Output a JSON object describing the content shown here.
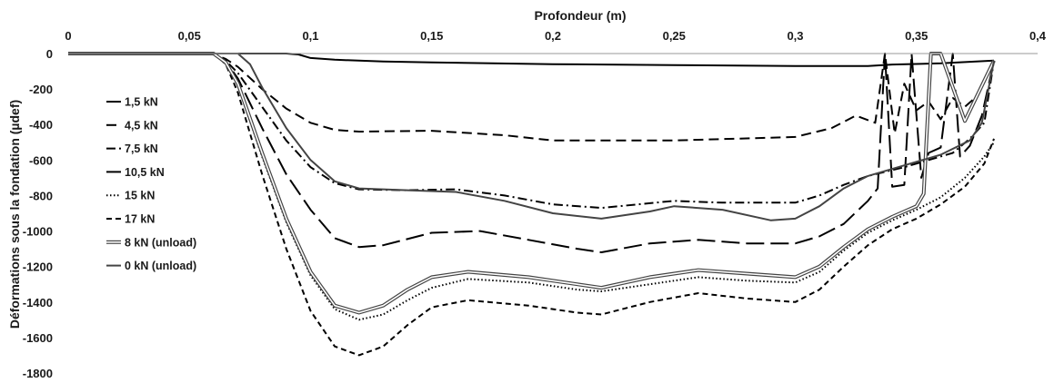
{
  "chart_data": {
    "type": "line",
    "xlabel": "Profondeur (m)",
    "ylabel": "Déformations sous la fondation (µdef)",
    "xlim": [
      0,
      0.4
    ],
    "ylim": [
      -1800,
      0
    ],
    "x_ticks": [
      "0",
      "0,05",
      "0,1",
      "0,15",
      "0,2",
      "0,25",
      "0,3",
      "0,35",
      "0,4"
    ],
    "y_ticks": [
      "0",
      "-200",
      "-400",
      "-600",
      "-800",
      "-1000",
      "-1200",
      "-1400",
      "-1600",
      "-1800"
    ],
    "grid": false,
    "legend_position": "left",
    "series": [
      {
        "name": "1,5 kN",
        "color": "#000000",
        "dash": "solid",
        "points": [
          [
            0.0,
            0
          ],
          [
            0.09,
            0
          ],
          [
            0.095,
            -5
          ],
          [
            0.1,
            -25
          ],
          [
            0.11,
            -35
          ],
          [
            0.13,
            -45
          ],
          [
            0.15,
            -50
          ],
          [
            0.2,
            -60
          ],
          [
            0.25,
            -65
          ],
          [
            0.3,
            -70
          ],
          [
            0.33,
            -70
          ],
          [
            0.34,
            -62
          ],
          [
            0.36,
            -55
          ],
          [
            0.382,
            -40
          ]
        ]
      },
      {
        "name": "4,5 kN",
        "color": "#000000",
        "dash": "medium-dash",
        "points": [
          [
            0.0,
            0
          ],
          [
            0.055,
            0
          ],
          [
            0.06,
            -5
          ],
          [
            0.065,
            -30
          ],
          [
            0.07,
            -75
          ],
          [
            0.08,
            -200
          ],
          [
            0.09,
            -310
          ],
          [
            0.1,
            -390
          ],
          [
            0.11,
            -430
          ],
          [
            0.12,
            -440
          ],
          [
            0.15,
            -435
          ],
          [
            0.18,
            -460
          ],
          [
            0.2,
            -490
          ],
          [
            0.25,
            -490
          ],
          [
            0.3,
            -470
          ],
          [
            0.315,
            -420
          ],
          [
            0.325,
            -350
          ],
          [
            0.333,
            -390
          ],
          [
            0.337,
            0
          ],
          [
            0.341,
            -450
          ],
          [
            0.345,
            -170
          ],
          [
            0.35,
            -320
          ],
          [
            0.355,
            -270
          ],
          [
            0.36,
            -370
          ],
          [
            0.365,
            -250
          ],
          [
            0.37,
            -300
          ],
          [
            0.375,
            -240
          ],
          [
            0.382,
            -40
          ]
        ]
      },
      {
        "name": "7,5 kN",
        "color": "#000000",
        "dash": "dash-dot",
        "points": [
          [
            0.0,
            0
          ],
          [
            0.055,
            0
          ],
          [
            0.06,
            -5
          ],
          [
            0.065,
            -40
          ],
          [
            0.07,
            -110
          ],
          [
            0.08,
            -300
          ],
          [
            0.09,
            -490
          ],
          [
            0.1,
            -640
          ],
          [
            0.11,
            -730
          ],
          [
            0.12,
            -765
          ],
          [
            0.14,
            -770
          ],
          [
            0.16,
            -765
          ],
          [
            0.18,
            -800
          ],
          [
            0.2,
            -850
          ],
          [
            0.22,
            -870
          ],
          [
            0.25,
            -830
          ],
          [
            0.27,
            -840
          ],
          [
            0.3,
            -840
          ],
          [
            0.31,
            -800
          ],
          [
            0.32,
            -740
          ],
          [
            0.33,
            -690
          ],
          [
            0.345,
            -640
          ],
          [
            0.355,
            -600
          ],
          [
            0.365,
            -560
          ],
          [
            0.372,
            -480
          ],
          [
            0.378,
            -390
          ],
          [
            0.382,
            -40
          ]
        ]
      },
      {
        "name": "10,5 kN",
        "color": "#000000",
        "dash": "long-dash",
        "points": [
          [
            0.0,
            0
          ],
          [
            0.055,
            0
          ],
          [
            0.06,
            -5
          ],
          [
            0.065,
            -45
          ],
          [
            0.07,
            -140
          ],
          [
            0.08,
            -420
          ],
          [
            0.09,
            -680
          ],
          [
            0.1,
            -880
          ],
          [
            0.11,
            -1040
          ],
          [
            0.12,
            -1090
          ],
          [
            0.13,
            -1080
          ],
          [
            0.15,
            -1010
          ],
          [
            0.17,
            -1000
          ],
          [
            0.19,
            -1050
          ],
          [
            0.21,
            -1100
          ],
          [
            0.22,
            -1120
          ],
          [
            0.24,
            -1070
          ],
          [
            0.26,
            -1050
          ],
          [
            0.28,
            -1070
          ],
          [
            0.3,
            -1070
          ],
          [
            0.31,
            -1030
          ],
          [
            0.32,
            -960
          ],
          [
            0.33,
            -830
          ],
          [
            0.334,
            -760
          ],
          [
            0.337,
            0
          ],
          [
            0.34,
            -750
          ],
          [
            0.345,
            -740
          ],
          [
            0.348,
            0
          ],
          [
            0.352,
            -700
          ],
          [
            0.355,
            -560
          ],
          [
            0.36,
            -530
          ],
          [
            0.365,
            0
          ],
          [
            0.368,
            -580
          ],
          [
            0.372,
            -520
          ],
          [
            0.377,
            -350
          ],
          [
            0.382,
            -40
          ]
        ]
      },
      {
        "name": "15 kN",
        "color": "#000000",
        "dash": "dotted",
        "points": [
          [
            0.0,
            0
          ],
          [
            0.06,
            0
          ],
          [
            0.065,
            -50
          ],
          [
            0.07,
            -180
          ],
          [
            0.08,
            -580
          ],
          [
            0.09,
            -950
          ],
          [
            0.1,
            -1250
          ],
          [
            0.11,
            -1440
          ],
          [
            0.12,
            -1500
          ],
          [
            0.13,
            -1470
          ],
          [
            0.14,
            -1390
          ],
          [
            0.15,
            -1320
          ],
          [
            0.165,
            -1270
          ],
          [
            0.19,
            -1290
          ],
          [
            0.21,
            -1330
          ],
          [
            0.22,
            -1340
          ],
          [
            0.24,
            -1300
          ],
          [
            0.26,
            -1260
          ],
          [
            0.28,
            -1280
          ],
          [
            0.3,
            -1290
          ],
          [
            0.31,
            -1230
          ],
          [
            0.32,
            -1110
          ],
          [
            0.33,
            -1010
          ],
          [
            0.34,
            -940
          ],
          [
            0.35,
            -880
          ],
          [
            0.36,
            -810
          ],
          [
            0.37,
            -700
          ],
          [
            0.378,
            -580
          ],
          [
            0.382,
            -500
          ]
        ]
      },
      {
        "name": "17 kN",
        "color": "#000000",
        "dash": "short-dash",
        "points": [
          [
            0.0,
            0
          ],
          [
            0.06,
            0
          ],
          [
            0.065,
            -60
          ],
          [
            0.07,
            -220
          ],
          [
            0.08,
            -680
          ],
          [
            0.09,
            -1100
          ],
          [
            0.1,
            -1450
          ],
          [
            0.11,
            -1650
          ],
          [
            0.12,
            -1700
          ],
          [
            0.13,
            -1650
          ],
          [
            0.14,
            -1530
          ],
          [
            0.15,
            -1430
          ],
          [
            0.165,
            -1390
          ],
          [
            0.19,
            -1420
          ],
          [
            0.21,
            -1460
          ],
          [
            0.22,
            -1470
          ],
          [
            0.24,
            -1400
          ],
          [
            0.26,
            -1350
          ],
          [
            0.28,
            -1380
          ],
          [
            0.3,
            -1400
          ],
          [
            0.31,
            -1330
          ],
          [
            0.32,
            -1200
          ],
          [
            0.33,
            -1080
          ],
          [
            0.34,
            -990
          ],
          [
            0.35,
            -930
          ],
          [
            0.36,
            -850
          ],
          [
            0.37,
            -750
          ],
          [
            0.378,
            -620
          ],
          [
            0.382,
            -480
          ]
        ]
      },
      {
        "name": "8 kN (unload)",
        "color": "#444444",
        "dash": "double",
        "points": [
          [
            0.0,
            0
          ],
          [
            0.06,
            0
          ],
          [
            0.065,
            -50
          ],
          [
            0.07,
            -170
          ],
          [
            0.08,
            -560
          ],
          [
            0.09,
            -930
          ],
          [
            0.1,
            -1230
          ],
          [
            0.11,
            -1420
          ],
          [
            0.12,
            -1460
          ],
          [
            0.13,
            -1420
          ],
          [
            0.14,
            -1330
          ],
          [
            0.15,
            -1260
          ],
          [
            0.165,
            -1230
          ],
          [
            0.19,
            -1260
          ],
          [
            0.21,
            -1300
          ],
          [
            0.22,
            -1320
          ],
          [
            0.24,
            -1260
          ],
          [
            0.26,
            -1220
          ],
          [
            0.28,
            -1240
          ],
          [
            0.3,
            -1260
          ],
          [
            0.31,
            -1200
          ],
          [
            0.32,
            -1090
          ],
          [
            0.33,
            -990
          ],
          [
            0.34,
            -920
          ],
          [
            0.35,
            -860
          ],
          [
            0.353,
            -790
          ],
          [
            0.356,
            0
          ],
          [
            0.36,
            0
          ],
          [
            0.37,
            -380
          ],
          [
            0.382,
            -40
          ]
        ]
      },
      {
        "name": "0 kN (unload)",
        "color": "#444444",
        "dash": "solid",
        "points": [
          [
            0.0,
            0
          ],
          [
            0.07,
            0
          ],
          [
            0.075,
            -60
          ],
          [
            0.08,
            -190
          ],
          [
            0.09,
            -420
          ],
          [
            0.1,
            -600
          ],
          [
            0.11,
            -720
          ],
          [
            0.12,
            -760
          ],
          [
            0.14,
            -770
          ],
          [
            0.16,
            -780
          ],
          [
            0.18,
            -830
          ],
          [
            0.2,
            -900
          ],
          [
            0.22,
            -930
          ],
          [
            0.24,
            -890
          ],
          [
            0.25,
            -860
          ],
          [
            0.27,
            -880
          ],
          [
            0.29,
            -940
          ],
          [
            0.3,
            -930
          ],
          [
            0.31,
            -860
          ],
          [
            0.32,
            -760
          ],
          [
            0.33,
            -690
          ],
          [
            0.345,
            -630
          ],
          [
            0.36,
            -570
          ],
          [
            0.372,
            -490
          ],
          [
            0.377,
            -390
          ],
          [
            0.382,
            -40
          ]
        ]
      }
    ]
  }
}
